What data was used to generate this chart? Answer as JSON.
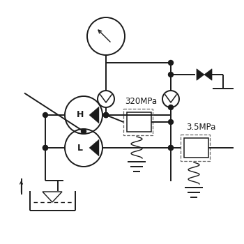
{
  "bg_color": "#ffffff",
  "line_color": "#1a1a1a",
  "dashed_color": "#666666",
  "text_320": "320MPa",
  "text_35": "3.5MPa",
  "lw": 1.4
}
